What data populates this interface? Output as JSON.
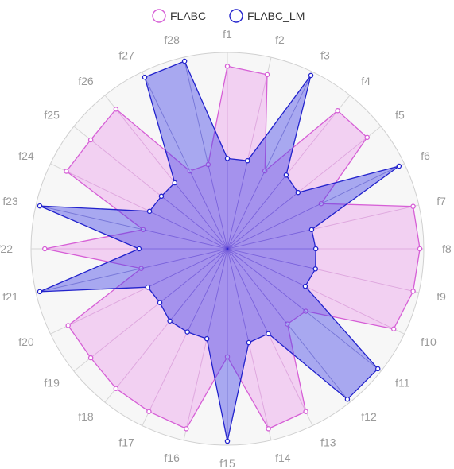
{
  "chart_data": {
    "type": "radar",
    "title": "",
    "axes": [
      "f1",
      "f2",
      "f3",
      "f4",
      "f5",
      "f6",
      "f7",
      "f8",
      "f9",
      "f10",
      "f11",
      "f12",
      "f13",
      "f14",
      "f15",
      "f16",
      "f17",
      "f18",
      "f19",
      "f20",
      "f21",
      "f22",
      "f23",
      "f24",
      "f25",
      "f26",
      "f27",
      "f28"
    ],
    "rmax": 1,
    "series": [
      {
        "name": "FLABC",
        "color": "#d65fd6",
        "fill": "rgba(238,170,238,0.5)",
        "values": [
          0.93,
          0.91,
          0.44,
          0.9,
          0.91,
          0.53,
          0.97,
          0.98,
          0.97,
          0.94,
          0.51,
          0.49,
          0.92,
          0.94,
          0.55,
          0.94,
          0.92,
          0.91,
          0.89,
          0.9,
          0.45,
          0.93,
          0.44,
          0.91,
          0.89,
          0.91,
          0.44,
          0.44
        ]
      },
      {
        "name": "FLABC_LM",
        "color": "#2222cc",
        "fill": "rgba(70,70,230,0.45)",
        "values": [
          0.46,
          0.46,
          0.98,
          0.48,
          0.46,
          0.97,
          0.44,
          0.45,
          0.46,
          0.44,
          0.98,
          0.98,
          0.48,
          0.49,
          0.98,
          0.47,
          0.47,
          0.47,
          0.44,
          0.45,
          0.98,
          0.45,
          0.98,
          0.44,
          0.43,
          0.43,
          0.97,
          0.98
        ]
      }
    ],
    "legend_position": "top-center",
    "grid": true
  }
}
